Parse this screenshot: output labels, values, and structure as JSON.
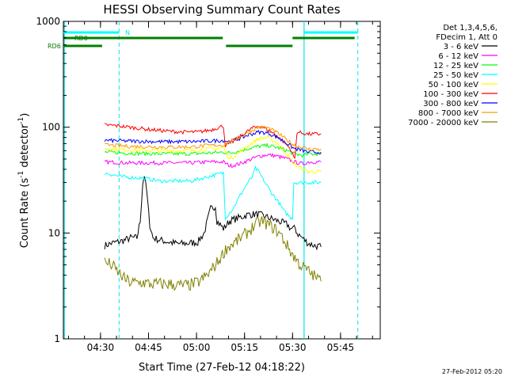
{
  "chart_data": {
    "type": "line",
    "title": "HESSI Observing Summary Count Rates",
    "xlabel": "Start Time (27-Feb-12 04:18:22)",
    "ylabel_main": "Count Rate (s",
    "ylabel_sup1": "-1",
    "ylabel_mid": " detector",
    "ylabel_sup2": "-1",
    "ylabel_end": ")",
    "x_unit": "minutes after 04:18:22",
    "xlim": [
      0,
      99
    ],
    "ylim": [
      1,
      1000
    ],
    "yscale": "log",
    "x_ticks": [
      {
        "label": "04:30",
        "minute": 11.6
      },
      {
        "label": "04:45",
        "minute": 26.6
      },
      {
        "label": "05:00",
        "minute": 41.6
      },
      {
        "label": "05:15",
        "minute": 56.6
      },
      {
        "label": "05:30",
        "minute": 71.6
      },
      {
        "label": "05:45",
        "minute": 86.6
      }
    ],
    "y_ticks": [
      {
        "label": "1",
        "value": 1
      },
      {
        "label": "10",
        "value": 10
      },
      {
        "label": "100",
        "value": 100
      },
      {
        "label": "1000",
        "value": 1000
      }
    ],
    "legend_header": [
      "Det 1,3,4,5,6,",
      "FDecim 1, Att 0"
    ],
    "series": [
      {
        "name": "3 - 6 keV",
        "color": "#000000",
        "points": [
          [
            12.9,
            7.6
          ],
          [
            15,
            8
          ],
          [
            19,
            8.5
          ],
          [
            21,
            9
          ],
          [
            23,
            9
          ],
          [
            24,
            13
          ],
          [
            24.8,
            30
          ],
          [
            25.3,
            35
          ],
          [
            26,
            25
          ],
          [
            27,
            12
          ],
          [
            28,
            9
          ],
          [
            30,
            8.6
          ],
          [
            33,
            8.2
          ],
          [
            36,
            7.9
          ],
          [
            39,
            8
          ],
          [
            42,
            8.2
          ],
          [
            44,
            10
          ],
          [
            46,
            17
          ],
          [
            47.5,
            18
          ],
          [
            48,
            13
          ],
          [
            49,
            12
          ],
          [
            50,
            11
          ],
          [
            52,
            13
          ],
          [
            55,
            14
          ],
          [
            58,
            15
          ],
          [
            61,
            15
          ],
          [
            64,
            14
          ],
          [
            67,
            13
          ],
          [
            70,
            12
          ],
          [
            71,
            11
          ],
          [
            72.5,
            11
          ],
          [
            73,
            10
          ],
          [
            75.5,
            8.5
          ],
          [
            76.5,
            8
          ],
          [
            78.5,
            7.6
          ],
          [
            80.5,
            7.4
          ]
        ]
      },
      {
        "name": "6 - 12 keV",
        "color": "#ff00ff",
        "points": [
          [
            12.9,
            47
          ],
          [
            20,
            46
          ],
          [
            30,
            46
          ],
          [
            40,
            46
          ],
          [
            45,
            47
          ],
          [
            50,
            47
          ],
          [
            52,
            43
          ],
          [
            55,
            45
          ],
          [
            58,
            49
          ],
          [
            61,
            53
          ],
          [
            64,
            55
          ],
          [
            67,
            53
          ],
          [
            70,
            50
          ],
          [
            72,
            47
          ],
          [
            75,
            45
          ],
          [
            76.5,
            47
          ],
          [
            80.5,
            47
          ]
        ]
      },
      {
        "name": "12 - 25 keV",
        "color": "#00ff00",
        "points": [
          [
            12.9,
            58
          ],
          [
            20,
            57
          ],
          [
            30,
            56
          ],
          [
            40,
            56
          ],
          [
            45,
            57
          ],
          [
            50,
            58
          ],
          [
            52,
            57
          ],
          [
            55,
            60
          ],
          [
            58,
            63
          ],
          [
            61,
            66
          ],
          [
            64,
            67
          ],
          [
            67,
            64
          ],
          [
            70,
            60
          ],
          [
            72,
            56
          ],
          [
            75,
            54
          ],
          [
            76.5,
            56
          ],
          [
            80.5,
            56
          ]
        ]
      },
      {
        "name": "25 - 50 keV",
        "color": "#00ffff",
        "points": [
          [
            12.9,
            37
          ],
          [
            18,
            34
          ],
          [
            25,
            33
          ],
          [
            30,
            31
          ],
          [
            35,
            31
          ],
          [
            40,
            31
          ],
          [
            45,
            34
          ],
          [
            50,
            37
          ],
          [
            50.6,
            14
          ],
          [
            53,
            17
          ],
          [
            55,
            22
          ],
          [
            57,
            28
          ],
          [
            59,
            34
          ],
          [
            60,
            41
          ],
          [
            61,
            38
          ],
          [
            63,
            30
          ],
          [
            65,
            24
          ],
          [
            67,
            20
          ],
          [
            69,
            16
          ],
          [
            71,
            14
          ],
          [
            71.6,
            14
          ],
          [
            72,
            30
          ],
          [
            76.5,
            30
          ],
          [
            80.5,
            30
          ]
        ]
      },
      {
        "name": "50 - 100 keV",
        "color": "#ffff00",
        "points": [
          [
            12.9,
            63
          ],
          [
            20,
            61
          ],
          [
            30,
            60
          ],
          [
            40,
            60
          ],
          [
            45,
            62
          ],
          [
            50,
            64
          ],
          [
            52,
            50
          ],
          [
            55,
            58
          ],
          [
            58,
            68
          ],
          [
            61,
            78
          ],
          [
            64,
            80
          ],
          [
            67,
            70
          ],
          [
            70,
            55
          ],
          [
            72,
            45
          ],
          [
            75,
            40
          ],
          [
            76.5,
            38
          ],
          [
            80.5,
            38
          ]
        ]
      },
      {
        "name": "100 - 300 keV",
        "color": "#ff0000",
        "points": [
          [
            12.9,
            105
          ],
          [
            17,
            103
          ],
          [
            22,
            99
          ],
          [
            27,
            95
          ],
          [
            32,
            92
          ],
          [
            37,
            90
          ],
          [
            42,
            90
          ],
          [
            46,
            94
          ],
          [
            50,
            103
          ],
          [
            50.6,
            67
          ],
          [
            53,
            73
          ],
          [
            56,
            85
          ],
          [
            59,
            98
          ],
          [
            61,
            103
          ],
          [
            63,
            98
          ],
          [
            66,
            86
          ],
          [
            69,
            72
          ],
          [
            71,
            62
          ],
          [
            72.3,
            50
          ],
          [
            73,
            90
          ],
          [
            76.5,
            86
          ],
          [
            80.5,
            86
          ]
        ]
      },
      {
        "name": "300 - 800 keV",
        "color": "#0000ff",
        "points": [
          [
            12.9,
            75
          ],
          [
            20,
            74
          ],
          [
            30,
            73
          ],
          [
            40,
            73
          ],
          [
            45,
            74
          ],
          [
            50,
            75
          ],
          [
            52,
            73
          ],
          [
            55,
            78
          ],
          [
            58,
            85
          ],
          [
            61,
            90
          ],
          [
            64,
            88
          ],
          [
            67,
            80
          ],
          [
            70,
            70
          ],
          [
            72,
            63
          ],
          [
            75,
            60
          ],
          [
            76.5,
            58
          ],
          [
            80.5,
            58
          ]
        ]
      },
      {
        "name": "800 - 7000 keV",
        "color": "#ff9900",
        "points": [
          [
            12.9,
            68
          ],
          [
            20,
            66
          ],
          [
            30,
            65
          ],
          [
            40,
            65
          ],
          [
            45,
            67
          ],
          [
            50,
            68
          ],
          [
            52,
            72
          ],
          [
            55,
            80
          ],
          [
            58,
            90
          ],
          [
            61,
            100
          ],
          [
            64,
            98
          ],
          [
            67,
            88
          ],
          [
            70,
            75
          ],
          [
            72,
            68
          ],
          [
            75,
            64
          ],
          [
            76.5,
            62
          ],
          [
            80.5,
            62
          ]
        ]
      },
      {
        "name": "7000 - 20000 keV",
        "color": "#808000",
        "points": [
          [
            12.9,
            5.3
          ],
          [
            15,
            5
          ],
          [
            17,
            4.3
          ],
          [
            19,
            3.7
          ],
          [
            21,
            3.4
          ],
          [
            25,
            3.4
          ],
          [
            27,
            3.3
          ],
          [
            30,
            3.3
          ],
          [
            33,
            3.3
          ],
          [
            36,
            3.2
          ],
          [
            39,
            3.2
          ],
          [
            42,
            3.4
          ],
          [
            45,
            4
          ],
          [
            48,
            5.2
          ],
          [
            51,
            7.2
          ],
          [
            54,
            8.3
          ],
          [
            57,
            9.8
          ],
          [
            60,
            12
          ],
          [
            62,
            13
          ],
          [
            64,
            12
          ],
          [
            66,
            11
          ],
          [
            68,
            9.5
          ],
          [
            70,
            7.5
          ],
          [
            72,
            6
          ],
          [
            74,
            5
          ],
          [
            76,
            4.5
          ],
          [
            78,
            4
          ],
          [
            80.5,
            3.5
          ]
        ]
      }
    ],
    "flags": [
      {
        "name": "RD0",
        "color": "#008000",
        "segments": [
          [
            0,
            49.8
          ],
          [
            71.6,
            91
          ]
        ]
      },
      {
        "name": "RD6",
        "color": "#008000",
        "segments": [
          [
            0,
            12.1
          ],
          [
            50.8,
            71.6
          ]
        ]
      },
      {
        "name": "N",
        "color": "#00ffff",
        "segments": [
          [
            0,
            17.4
          ],
          [
            75.2,
            92
          ]
        ]
      }
    ],
    "attenuator_lines_solid": [
      0.3,
      75.2
    ],
    "attenuator_lines_dashed": [
      17.4,
      92.0
    ],
    "footer_date": "27-Feb-2012 05:20"
  }
}
